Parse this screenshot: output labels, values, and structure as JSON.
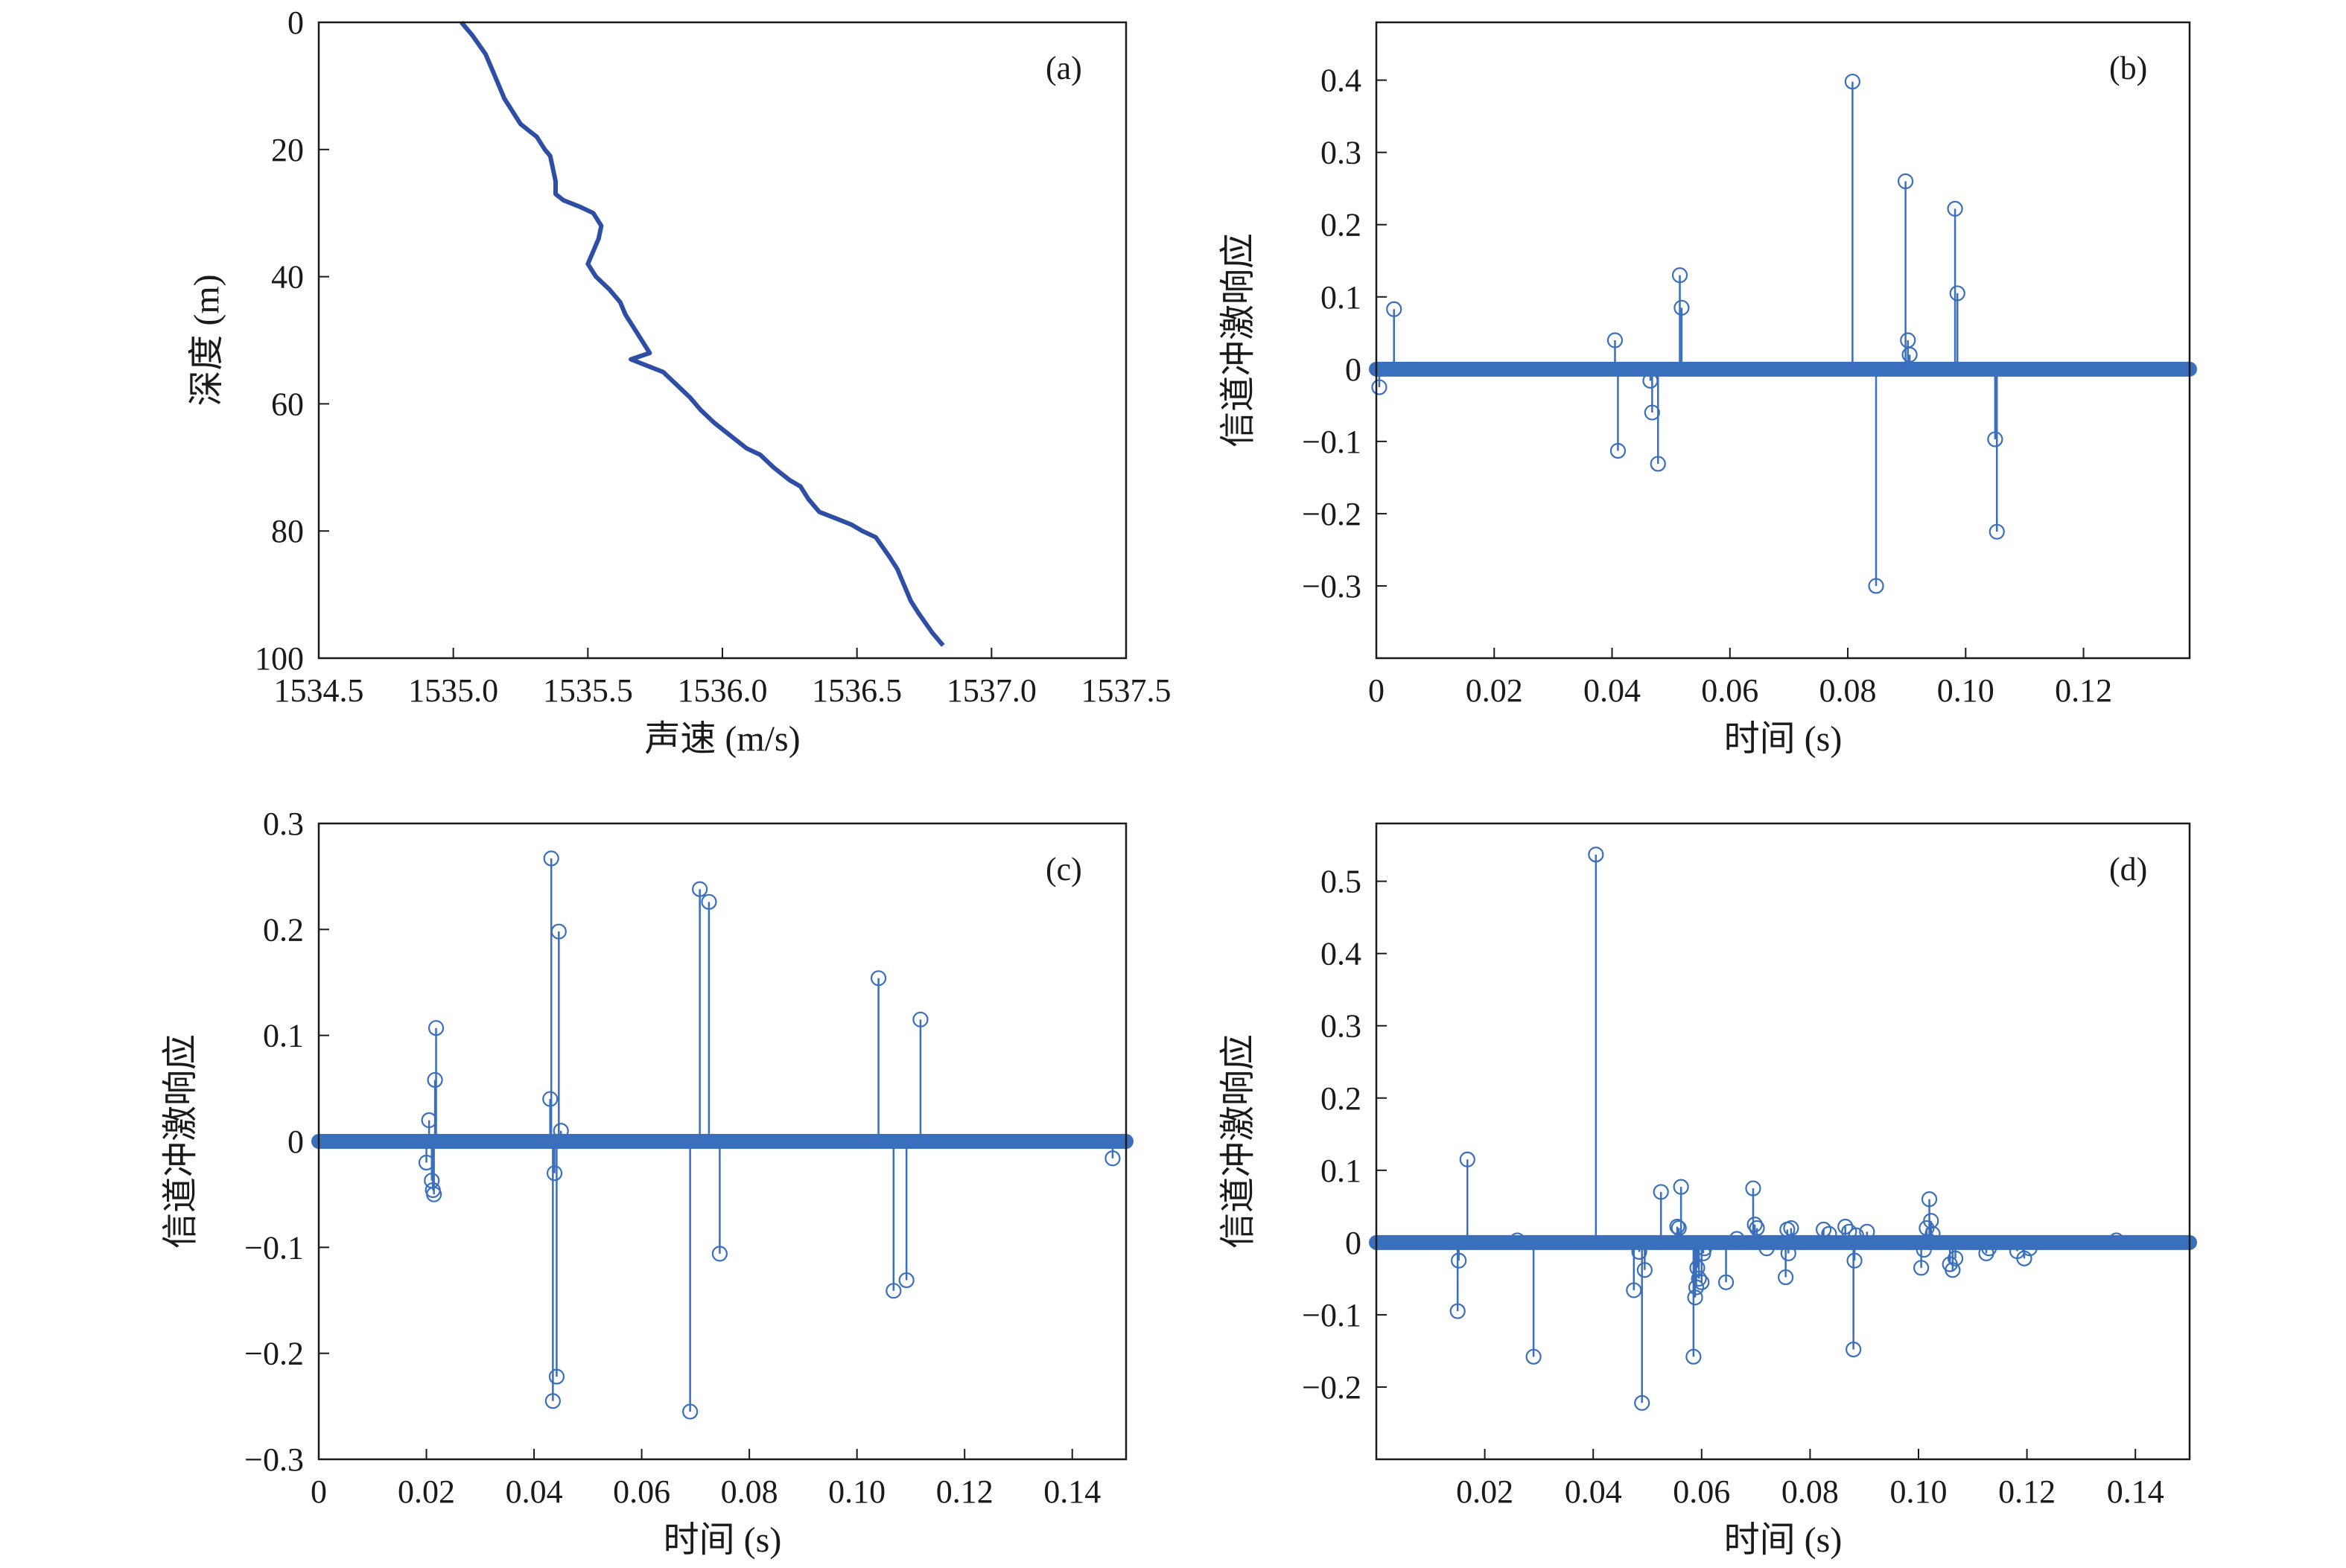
{
  "chart_data": [
    {
      "id": "a",
      "type": "line",
      "panel_label": "(a)",
      "xlabel": "声速 (m/s)",
      "ylabel": "深度 (m)",
      "xlim": [
        1534.5,
        1537.5
      ],
      "ylim": [
        0,
        100
      ],
      "y_inverted": true,
      "xticks": [
        "1534.5",
        "1535.0",
        "1535.5",
        "1536.0",
        "1536.5",
        "1537.0",
        "1537.5"
      ],
      "yticks": [
        "0",
        "20",
        "40",
        "60",
        "80",
        "100"
      ],
      "line_color": "#2e4ea6",
      "x": [
        1535.03,
        1535.05,
        1535.07,
        1535.12,
        1535.15,
        1535.19,
        1535.22,
        1535.25,
        1535.28,
        1535.31,
        1535.34,
        1535.36,
        1535.37,
        1535.38,
        1535.38,
        1535.41,
        1535.47,
        1535.52,
        1535.55,
        1535.54,
        1535.52,
        1535.5,
        1535.53,
        1535.58,
        1535.62,
        1535.64,
        1535.67,
        1535.7,
        1535.73,
        1535.66,
        1535.72,
        1535.78,
        1535.83,
        1535.88,
        1535.92,
        1535.97,
        1536.03,
        1536.09,
        1536.14,
        1536.19,
        1536.25,
        1536.29,
        1536.32,
        1536.36,
        1536.42,
        1536.48,
        1536.52,
        1536.57,
        1536.62,
        1536.65,
        1536.67,
        1536.7,
        1536.73,
        1536.78,
        1536.82
      ],
      "y": [
        0,
        1,
        2,
        5,
        8,
        12,
        14,
        16,
        17,
        18,
        20,
        21,
        23,
        25,
        27,
        28,
        29,
        30,
        32,
        34,
        36,
        38,
        40,
        42,
        44,
        46,
        48,
        50,
        52,
        53,
        54,
        55,
        57,
        59,
        61,
        63,
        65,
        67,
        68,
        70,
        72,
        73,
        75,
        77,
        78,
        79,
        80,
        81,
        84,
        86,
        88,
        91,
        93,
        96,
        98
      ]
    },
    {
      "id": "b",
      "type": "stem",
      "panel_label": "(b)",
      "xlabel": "时间 (s)",
      "ylabel": "信道冲激响应",
      "xlim": [
        0,
        0.138
      ],
      "ylim": [
        -0.4,
        0.48
      ],
      "xticks": [
        "0",
        "0.02",
        "0.04",
        "0.06",
        "0.08",
        "0.10",
        "0.12"
      ],
      "yticks": [
        "0.4",
        "0.3",
        "0.2",
        "0.1",
        "0",
        "−0.1",
        "−0.2",
        "−0.3"
      ],
      "color": "#3a6fbd",
      "x": [
        0.0005,
        0.003,
        0.0405,
        0.041,
        0.0465,
        0.0468,
        0.0478,
        0.0515,
        0.0518,
        0.0808,
        0.0848,
        0.0898,
        0.0902,
        0.0905,
        0.0982,
        0.0986,
        0.105,
        0.1053
      ],
      "values": [
        -0.025,
        0.083,
        0.04,
        -0.113,
        -0.016,
        -0.06,
        -0.131,
        0.13,
        0.085,
        0.398,
        -0.3,
        0.26,
        0.04,
        0.02,
        0.222,
        0.105,
        -0.097,
        -0.225
      ]
    },
    {
      "id": "c",
      "type": "stem",
      "panel_label": "(c)",
      "xlabel": "时间 (s)",
      "ylabel": "信道冲激响应",
      "xlim": [
        0,
        0.15
      ],
      "ylim": [
        -0.3,
        0.3
      ],
      "xticks": [
        "0",
        "0.02",
        "0.04",
        "0.06",
        "0.08",
        "0.10",
        "0.12",
        "0.14"
      ],
      "yticks": [
        "0.3",
        "0.2",
        "0.1",
        "0",
        "−0.1",
        "−0.2",
        "−0.3"
      ],
      "color": "#3a6fbd",
      "x": [
        0.02,
        0.0205,
        0.021,
        0.0212,
        0.0214,
        0.0216,
        0.0218,
        0.043,
        0.0432,
        0.0435,
        0.0438,
        0.0442,
        0.0446,
        0.045,
        0.069,
        0.0708,
        0.0725,
        0.0745,
        0.104,
        0.1068,
        0.1092,
        0.1118,
        0.1475
      ],
      "values": [
        -0.02,
        0.02,
        -0.037,
        -0.046,
        -0.05,
        0.058,
        0.107,
        0.04,
        0.267,
        -0.245,
        -0.03,
        -0.222,
        0.198,
        0.01,
        -0.255,
        0.238,
        0.226,
        -0.106,
        0.154,
        -0.141,
        -0.131,
        0.115,
        -0.016
      ]
    },
    {
      "id": "d",
      "type": "stem",
      "panel_label": "(d)",
      "xlabel": "时间 (s)",
      "ylabel": "信道冲激响应",
      "xlim": [
        0,
        0.15
      ],
      "ylim": [
        -0.3,
        0.58
      ],
      "xticks": [
        "0.02",
        "0.04",
        "0.06",
        "0.08",
        "0.10",
        "0.12",
        "0.14"
      ],
      "yticks": [
        "0.5",
        "0.4",
        "0.3",
        "0.2",
        "0.1",
        "0",
        "−0.1",
        "−0.2"
      ],
      "color": "#3a6fbd",
      "x": [
        0.015,
        0.0152,
        0.0168,
        0.026,
        0.029,
        0.0405,
        0.0475,
        0.0485,
        0.049,
        0.0495,
        0.0525,
        0.0555,
        0.0558,
        0.0562,
        0.0585,
        0.0588,
        0.059,
        0.0592,
        0.0595,
        0.06,
        0.0603,
        0.0605,
        0.0645,
        0.0665,
        0.0695,
        0.0698,
        0.0702,
        0.072,
        0.0755,
        0.0758,
        0.076,
        0.0765,
        0.0825,
        0.0835,
        0.0865,
        0.0872,
        0.088,
        0.0882,
        0.0885,
        0.0905,
        0.1005,
        0.101,
        0.1015,
        0.102,
        0.1023,
        0.1026,
        0.1058,
        0.1063,
        0.1068,
        0.1125,
        0.113,
        0.1182,
        0.1195,
        0.1205,
        0.1365
      ],
      "values": [
        -0.095,
        -0.025,
        0.115,
        0.003,
        -0.158,
        0.537,
        -0.066,
        -0.013,
        -0.222,
        -0.038,
        0.07,
        0.022,
        0.02,
        0.077,
        -0.158,
        -0.076,
        -0.062,
        -0.035,
        -0.05,
        -0.055,
        -0.015,
        -0.008,
        -0.055,
        0.005,
        0.075,
        0.025,
        0.02,
        -0.008,
        -0.048,
        0.018,
        -0.015,
        0.02,
        0.018,
        0.012,
        0.022,
        0.015,
        -0.148,
        -0.025,
        0.01,
        0.015,
        -0.035,
        -0.01,
        0.02,
        0.06,
        0.03,
        0.012,
        -0.03,
        -0.038,
        -0.022,
        -0.015,
        -0.008,
        -0.012,
        -0.022,
        -0.008,
        0.003
      ]
    }
  ]
}
